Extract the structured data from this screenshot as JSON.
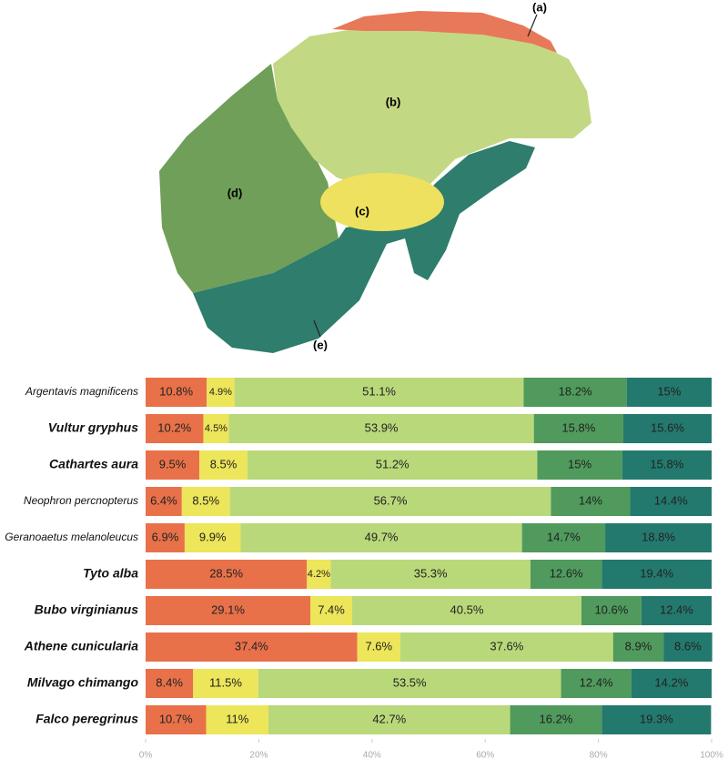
{
  "diagram": {
    "labels": [
      "(a)",
      "(b)",
      "(c)",
      "(d)",
      "(e)"
    ]
  },
  "chart_data": {
    "type": "stacked_bar",
    "categories": [
      "Argentavis magnificens",
      "Vultur gryphus",
      "Cathartes aura",
      "Neophron percnopterus",
      "Geranoaetus melanoleucus",
      "Tyto alba",
      "Bubo virginianus",
      "Athene cunicularia",
      "Milvago chimango",
      "Falco peregrinus"
    ],
    "series": [
      {
        "color": "#e8714a",
        "values": [
          10.8,
          10.2,
          9.5,
          6.4,
          6.9,
          28.5,
          29.1,
          37.4,
          8.4,
          10.7
        ],
        "value_labels": [
          "10.8%",
          "10.2%",
          "9.5%",
          "6.4%",
          "6.9%",
          "28.5%",
          "29.1%",
          "37.4%",
          "8.4%",
          "10.7%"
        ]
      },
      {
        "color": "#ede55a",
        "values": [
          4.9,
          4.5,
          8.5,
          8.5,
          9.9,
          4.2,
          7.4,
          7.6,
          11.5,
          11
        ],
        "value_labels": [
          "4.9%",
          "4.5%",
          "8.5%",
          "8.5%",
          "9.9%",
          "4.2%",
          "7.4%",
          "7.6%",
          "11.5%",
          "11%"
        ]
      },
      {
        "color": "#b9d87a",
        "values": [
          51.1,
          53.9,
          51.2,
          56.7,
          49.7,
          35.3,
          40.5,
          37.6,
          53.5,
          42.7
        ],
        "value_labels": [
          "51.1%",
          "53.9%",
          "51.2%",
          "56.7%",
          "49.7%",
          "35.3%",
          "40.5%",
          "37.6%",
          "53.5%",
          "42.7%"
        ]
      },
      {
        "color": "#4f9a5c",
        "values": [
          18.2,
          15.8,
          15,
          14,
          14.7,
          12.6,
          10.6,
          8.9,
          12.4,
          16.2
        ],
        "value_labels": [
          "18.2%",
          "15.8%",
          "15%",
          "14%",
          "14.7%",
          "12.6%",
          "10.6%",
          "8.9%",
          "12.4%",
          "16.2%"
        ]
      },
      {
        "color": "#23796d",
        "values": [
          15,
          15.6,
          15.8,
          14.4,
          18.8,
          19.4,
          12.4,
          8.6,
          14.2,
          19.3
        ],
        "value_labels": [
          "15%",
          "15.6%",
          "15.8%",
          "14.4%",
          "18.8%",
          "19.4%",
          "12.4%",
          "8.6%",
          "14.2%",
          "19.3%"
        ]
      }
    ],
    "xlim": [
      0,
      100
    ],
    "xticks": [
      {
        "value": 0,
        "label": "0%"
      },
      {
        "value": 20,
        "label": "20%"
      },
      {
        "value": 40,
        "label": "40%"
      },
      {
        "value": 60,
        "label": "60%"
      },
      {
        "value": 80,
        "label": "80%"
      },
      {
        "value": 100,
        "label": "100%"
      }
    ]
  }
}
